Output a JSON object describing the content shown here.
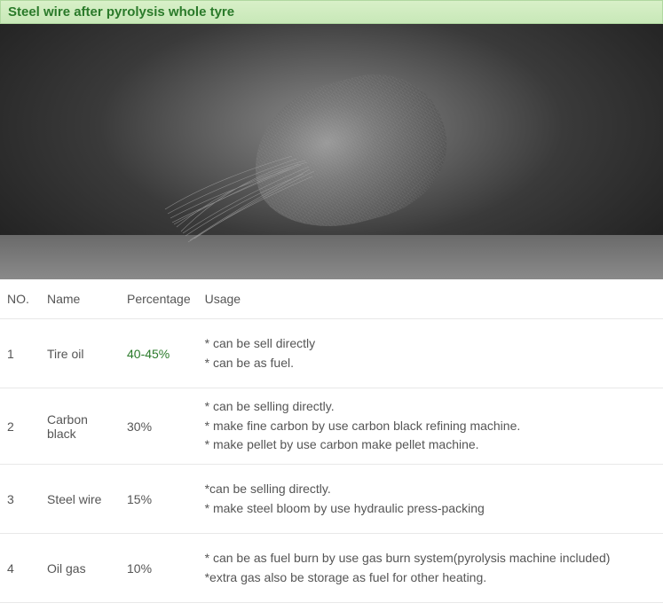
{
  "title": "Steel wire after pyrolysis whole tyre",
  "title_color": "#2a7a2a",
  "title_bg_top": "#d8f0c8",
  "title_bg_bottom": "#c8e8b8",
  "columns": {
    "no": "NO.",
    "name": "Name",
    "pct": "Percentage",
    "usage": "Usage"
  },
  "rows": [
    {
      "no": "1",
      "name": "Tire oil",
      "pct": "40-45%",
      "pct_highlight": true,
      "usage": [
        "* can be sell directly",
        "* can be as fuel."
      ]
    },
    {
      "no": "2",
      "name": "Carbon black",
      "pct": "30%",
      "pct_highlight": false,
      "usage": [
        "* can be selling directly.",
        "* make fine carbon by use carbon black refining machine.",
        "* make pellet by use carbon make pellet machine."
      ]
    },
    {
      "no": "3",
      "name": "Steel wire",
      "pct": "15%",
      "pct_highlight": false,
      "usage": [
        "*can be selling directly.",
        "* make steel bloom by use hydraulic press-packing"
      ]
    },
    {
      "no": "4",
      "name": "Oil gas",
      "pct": "10%",
      "pct_highlight": false,
      "usage": [
        "* can be as fuel burn by use gas burn system(pyrolysis machine included)",
        "*extra gas also be storage as fuel for other heating."
      ]
    }
  ],
  "text_color": "#555555",
  "highlight_color": "#2a7a2a",
  "border_color": "#e8e8e8"
}
